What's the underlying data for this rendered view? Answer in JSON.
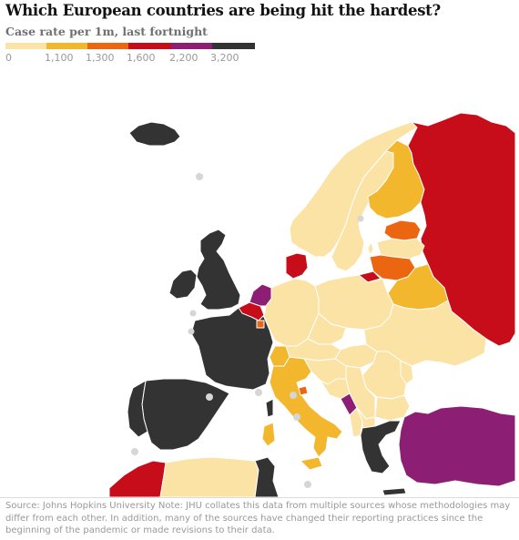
{
  "title": "Which European countries are being hit the hardest?",
  "subtitle": "Case rate per 1m, last fortnight",
  "legend": {
    "items": [
      {
        "label": "0",
        "color": "#fbe3a6"
      },
      {
        "label": "1,100",
        "color": "#f3b72d"
      },
      {
        "label": "1,300",
        "color": "#ec6612"
      },
      {
        "label": "1,600",
        "color": "#c70d19"
      },
      {
        "label": "2,200",
        "color": "#8c1e74"
      },
      {
        "label": "3,200",
        "color": "#333333"
      }
    ]
  },
  "map": {
    "colors": {
      "low": "#fbe3a6",
      "band_1100": "#f3b72d",
      "band_1300": "#ec6612",
      "band_1600": "#c70d19",
      "band_2200": "#8c1e74",
      "band_3200": "#333333",
      "no_data": "#ffffff",
      "border": "#ffffff",
      "microstate_no_data": "#d6d6d6"
    },
    "countries": [
      {
        "name": "Iceland",
        "band": "band_3200"
      },
      {
        "name": "Ireland",
        "band": "band_3200"
      },
      {
        "name": "United Kingdom",
        "band": "band_3200"
      },
      {
        "name": "France",
        "band": "band_3200"
      },
      {
        "name": "Spain",
        "band": "band_3200"
      },
      {
        "name": "Portugal",
        "band": "band_3200"
      },
      {
        "name": "Belgium",
        "band": "band_1600"
      },
      {
        "name": "Netherlands",
        "band": "band_2200"
      },
      {
        "name": "Luxembourg",
        "band": "band_1300"
      },
      {
        "name": "Denmark",
        "band": "band_1600"
      },
      {
        "name": "Norway",
        "band": "low"
      },
      {
        "name": "Sweden",
        "band": "low"
      },
      {
        "name": "Finland",
        "band": "band_1100"
      },
      {
        "name": "Russia",
        "band": "band_1600"
      },
      {
        "name": "Estonia",
        "band": "band_1300"
      },
      {
        "name": "Latvia",
        "band": "low"
      },
      {
        "name": "Lithuania",
        "band": "band_1300"
      },
      {
        "name": "Belarus",
        "band": "band_1100"
      },
      {
        "name": "Ukraine",
        "band": "low"
      },
      {
        "name": "Poland",
        "band": "low"
      },
      {
        "name": "Germany",
        "band": "low"
      },
      {
        "name": "Czechia",
        "band": "low"
      },
      {
        "name": "Austria",
        "band": "low"
      },
      {
        "name": "Switzerland",
        "band": "band_1100"
      },
      {
        "name": "Italy",
        "band": "band_1100"
      },
      {
        "name": "San Marino",
        "band": "band_1300"
      },
      {
        "name": "Hungary",
        "band": "low"
      },
      {
        "name": "Romania",
        "band": "low"
      },
      {
        "name": "Moldova",
        "band": "low"
      },
      {
        "name": "Bulgaria",
        "band": "low"
      },
      {
        "name": "Serbia",
        "band": "low"
      },
      {
        "name": "Croatia",
        "band": "low"
      },
      {
        "name": "Bosnia",
        "band": "low"
      },
      {
        "name": "Montenegro",
        "band": "band_2200"
      },
      {
        "name": "Albania",
        "band": "low"
      },
      {
        "name": "North Macedonia",
        "band": "low"
      },
      {
        "name": "Greece",
        "band": "band_3200"
      },
      {
        "name": "Turkey",
        "band": "band_2200"
      },
      {
        "name": "Morocco",
        "band": "band_1600"
      },
      {
        "name": "Algeria",
        "band": "low"
      },
      {
        "name": "Tunisia",
        "band": "band_3200"
      },
      {
        "name": "Kaliningrad",
        "band": "band_1600"
      }
    ]
  },
  "source": "Source: Johns Hopkins University Note: JHU collates this data from multiple sources whose methodologies may differ from each other. In addition, many of the sources have changed their reporting practices since the beginning of the pandemic or made revisions to their data."
}
